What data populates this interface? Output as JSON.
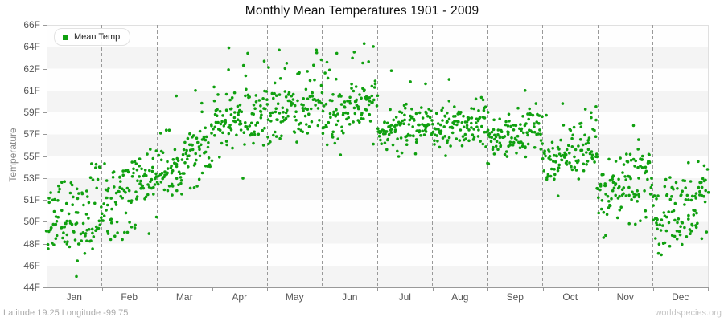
{
  "title": "Monthly Mean Temperatures 1901 - 2009",
  "legend": {
    "label": "Mean Temp"
  },
  "y_axis": {
    "label": "Temperature",
    "tick_labels": [
      "66F",
      "64F",
      "62F",
      "61F",
      "59F",
      "57F",
      "55F",
      "53F",
      "51F",
      "50F",
      "48F",
      "46F",
      "44F"
    ]
  },
  "x_axis": {
    "tick_labels": [
      "Jan",
      "Feb",
      "Mar",
      "Apr",
      "May",
      "Jun",
      "Jul",
      "Aug",
      "Sep",
      "Oct",
      "Nov",
      "Dec"
    ]
  },
  "footer": {
    "left": "Latitude 19.25 Longitude -99.75",
    "right": "worldspecies.org"
  },
  "colors": {
    "marker": "#10a010",
    "band_light": "#fefefe",
    "band_dark": "#f4f4f4",
    "gridline": "#999999",
    "axis": "#999999",
    "plot_border": "#e0e0e0"
  },
  "chart_data": {
    "type": "scatter",
    "title": "Monthly Mean Temperatures 1901 - 2009",
    "xlabel": "",
    "ylabel": "Temperature",
    "x_categories": [
      "Jan",
      "Feb",
      "Mar",
      "Apr",
      "May",
      "Jun",
      "Jul",
      "Aug",
      "Sep",
      "Oct",
      "Nov",
      "Dec"
    ],
    "y_tick_values": [
      66,
      64,
      62,
      61,
      59,
      57,
      55,
      53,
      51,
      50,
      48,
      46,
      44
    ],
    "y_tick_spacing": "uniform (labels are rounded Fahrenheit conversions of 19..7 Celsius)",
    "ylim_f": [
      44,
      66
    ],
    "grid": "vertical dashed lines at month boundaries; alternating horizontal bands",
    "legend_position": "top-left inside plot",
    "series": [
      {
        "name": "Mean Temp",
        "marker": "small green dot",
        "year_range": [
          1901,
          2009
        ],
        "points_per_month": 109,
        "x_within_month": "years 1901-2009 spread left to right inside each month band",
        "monthly_distributions": [
          {
            "month": "Jan",
            "mean_f": 49.9,
            "sd_f": 1.9,
            "min_f": 45.0,
            "max_f": 54.3,
            "trend_f_per_period": 1.8,
            "outliers_f": [
              45.0
            ]
          },
          {
            "month": "Feb",
            "mean_f": 51.9,
            "sd_f": 1.6,
            "min_f": 47.8,
            "max_f": 55.7,
            "trend_f_per_period": 2.0,
            "outliers_f": []
          },
          {
            "month": "Mar",
            "mean_f": 55.1,
            "sd_f": 1.8,
            "min_f": 50.3,
            "max_f": 61.0,
            "trend_f_per_period": 2.2,
            "outliers_f": [
              60.5,
              61.0
            ]
          },
          {
            "month": "Apr",
            "mean_f": 58.4,
            "sd_f": 1.8,
            "min_f": 52.3,
            "max_f": 63.9,
            "trend_f_per_period": 2.0,
            "outliers_f": [
              63.4,
              63.9
            ]
          },
          {
            "month": "May",
            "mean_f": 59.5,
            "sd_f": 1.6,
            "min_f": 55.1,
            "max_f": 63.7,
            "trend_f_per_period": 1.5,
            "outliers_f": [
              63.7
            ]
          },
          {
            "month": "Jun",
            "mean_f": 59.6,
            "sd_f": 1.7,
            "min_f": 55.1,
            "max_f": 64.3,
            "trend_f_per_period": 1.2,
            "outliers_f": [
              64.3,
              63.4
            ]
          },
          {
            "month": "Jul",
            "mean_f": 57.4,
            "sd_f": 1.2,
            "min_f": 54.6,
            "max_f": 61.9,
            "trend_f_per_period": 1.2,
            "outliers_f": [
              61.9,
              61.4
            ]
          },
          {
            "month": "Aug",
            "mean_f": 57.7,
            "sd_f": 1.2,
            "min_f": 54.9,
            "max_f": 61.5,
            "trend_f_per_period": 1.2,
            "outliers_f": [
              61.5
            ]
          },
          {
            "month": "Sep",
            "mean_f": 56.9,
            "sd_f": 1.3,
            "min_f": 54.2,
            "max_f": 61.0,
            "trend_f_per_period": 1.2,
            "outliers_f": [
              61.0
            ]
          },
          {
            "month": "Oct",
            "mean_f": 55.3,
            "sd_f": 1.5,
            "min_f": 51.1,
            "max_f": 59.8,
            "trend_f_per_period": 1.5,
            "outliers_f": [
              59.8
            ]
          },
          {
            "month": "Nov",
            "mean_f": 52.4,
            "sd_f": 1.7,
            "min_f": 47.6,
            "max_f": 57.8,
            "trend_f_per_period": 1.8,
            "outliers_f": [
              56.5,
              57.8
            ]
          },
          {
            "month": "Dec",
            "mean_f": 50.7,
            "sd_f": 1.6,
            "min_f": 46.4,
            "max_f": 54.5,
            "trend_f_per_period": 1.8,
            "outliers_f": [
              54.4
            ]
          }
        ]
      }
    ]
  }
}
